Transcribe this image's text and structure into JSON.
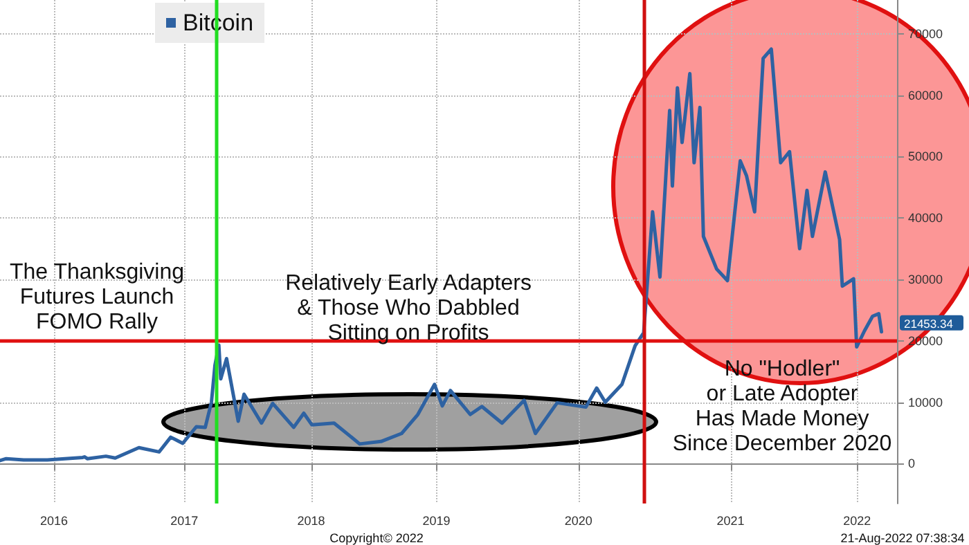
{
  "chart_data": {
    "type": "line",
    "series": [
      {
        "name": "Bitcoin",
        "color": "#2e62a2",
        "x": [
          "2016-06-01",
          "2016-06-17",
          "2016-08-01",
          "2016-10-01",
          "2016-12-31",
          "2017-01-05",
          "2017-01-12",
          "2017-03-01",
          "2017-03-25",
          "2017-05-25",
          "2017-07-16",
          "2017-08-15",
          "2017-09-15",
          "2017-10-20",
          "2017-11-12",
          "2017-11-28",
          "2017-12-07",
          "2017-12-17",
          "2017-12-22",
          "2018-01-06",
          "2018-02-05",
          "2018-02-20",
          "2018-04-06",
          "2018-05-05",
          "2018-06-28",
          "2018-07-24",
          "2018-08-14",
          "2018-10-10",
          "2018-11-20",
          "2018-12-15",
          "2019-02-08",
          "2019-04-02",
          "2019-05-14",
          "2019-06-26",
          "2019-07-16",
          "2019-08-06",
          "2019-09-26",
          "2019-10-26",
          "2019-12-17",
          "2020-02-12",
          "2020-03-12",
          "2020-05-07",
          "2020-07-20",
          "2020-08-17",
          "2020-09-08",
          "2020-10-21",
          "2020-11-24",
          "2020-12-16",
          "2021-01-08",
          "2021-01-27",
          "2021-02-21",
          "2021-02-28",
          "2021-03-13",
          "2021-03-25",
          "2021-04-14",
          "2021-04-25",
          "2021-05-10",
          "2021-05-19",
          "2021-06-22",
          "2021-07-20",
          "2021-08-22",
          "2021-09-07",
          "2021-09-28",
          "2021-10-20",
          "2021-11-10",
          "2021-12-04",
          "2021-12-27",
          "2022-01-22",
          "2022-02-10",
          "2022-02-24",
          "2022-03-29",
          "2022-05-05",
          "2022-05-12",
          "2022-06-10",
          "2022-06-18",
          "2022-07-08",
          "2022-07-29",
          "2022-08-14",
          "2022-08-21"
        ],
        "values": [
          500,
          800,
          600,
          600,
          1000,
          1100,
          800,
          1200,
          900,
          2600,
          1900,
          4300,
          3300,
          6000,
          5900,
          10000,
          16000,
          19300,
          13800,
          17100,
          6900,
          11300,
          6600,
          9800,
          5900,
          8200,
          6300,
          6600,
          4500,
          3200,
          3600,
          4900,
          8000,
          12900,
          9400,
          11900,
          8000,
          9300,
          6600,
          10300,
          4900,
          9900,
          9200,
          12300,
          10000,
          12900,
          19200,
          21300,
          41000,
          30400,
          57500,
          45200,
          61200,
          52300,
          63500,
          49000,
          58000,
          37000,
          31700,
          29800,
          49300,
          46900,
          41000,
          66000,
          67500,
          49000,
          50800,
          35000,
          44500,
          37000,
          47500,
          36500,
          28900,
          30100,
          19000,
          21600,
          24000,
          24400,
          21453.34
        ]
      }
    ],
    "xlim": [
      "2016-06-01",
      "2022-09-30"
    ],
    "xticks": [
      {
        "value": "2016-10-18",
        "label": "2016"
      },
      {
        "value": "2017-09-19",
        "label": "2017"
      },
      {
        "value": "2018-08-12",
        "label": "2018"
      },
      {
        "value": "2019-07-01",
        "label": "2019"
      },
      {
        "value": "2020-07-01",
        "label": "2020"
      },
      {
        "value": "2021-07-28",
        "label": "2021"
      },
      {
        "value": "2022-06-19",
        "label": "2022"
      }
    ],
    "ylim": [
      -6500,
      75500
    ],
    "yticks": [
      0,
      10000,
      20000,
      30000,
      40000,
      50000,
      60000,
      70000
    ],
    "ref_lines": [
      {
        "axis": "y",
        "value": 20000,
        "color": "#e01010"
      },
      {
        "axis": "x",
        "value": "2017-12-10",
        "color": "#22dd22"
      },
      {
        "axis": "x",
        "value": "2020-12-16",
        "color": "#d01010"
      }
    ],
    "annotations": [
      "The Thanksgiving\nFutures Launch\nFOMO Rally",
      "Relatively Early Adapters\n& Those Who Dabbled\nSitting on Profits",
      "No \"Hodler\"\nor Late Adopter\nHas Made Money\nSince December 2020",
      {
        "text": "21453.34",
        "x": "2022-08-21",
        "y": 21453.34
      },
      "Copyright© 2022",
      "21-Aug-2022 07:38:34"
    ],
    "grid": true,
    "legend": "top left",
    "line_style": "solid",
    "marker": "none"
  }
}
